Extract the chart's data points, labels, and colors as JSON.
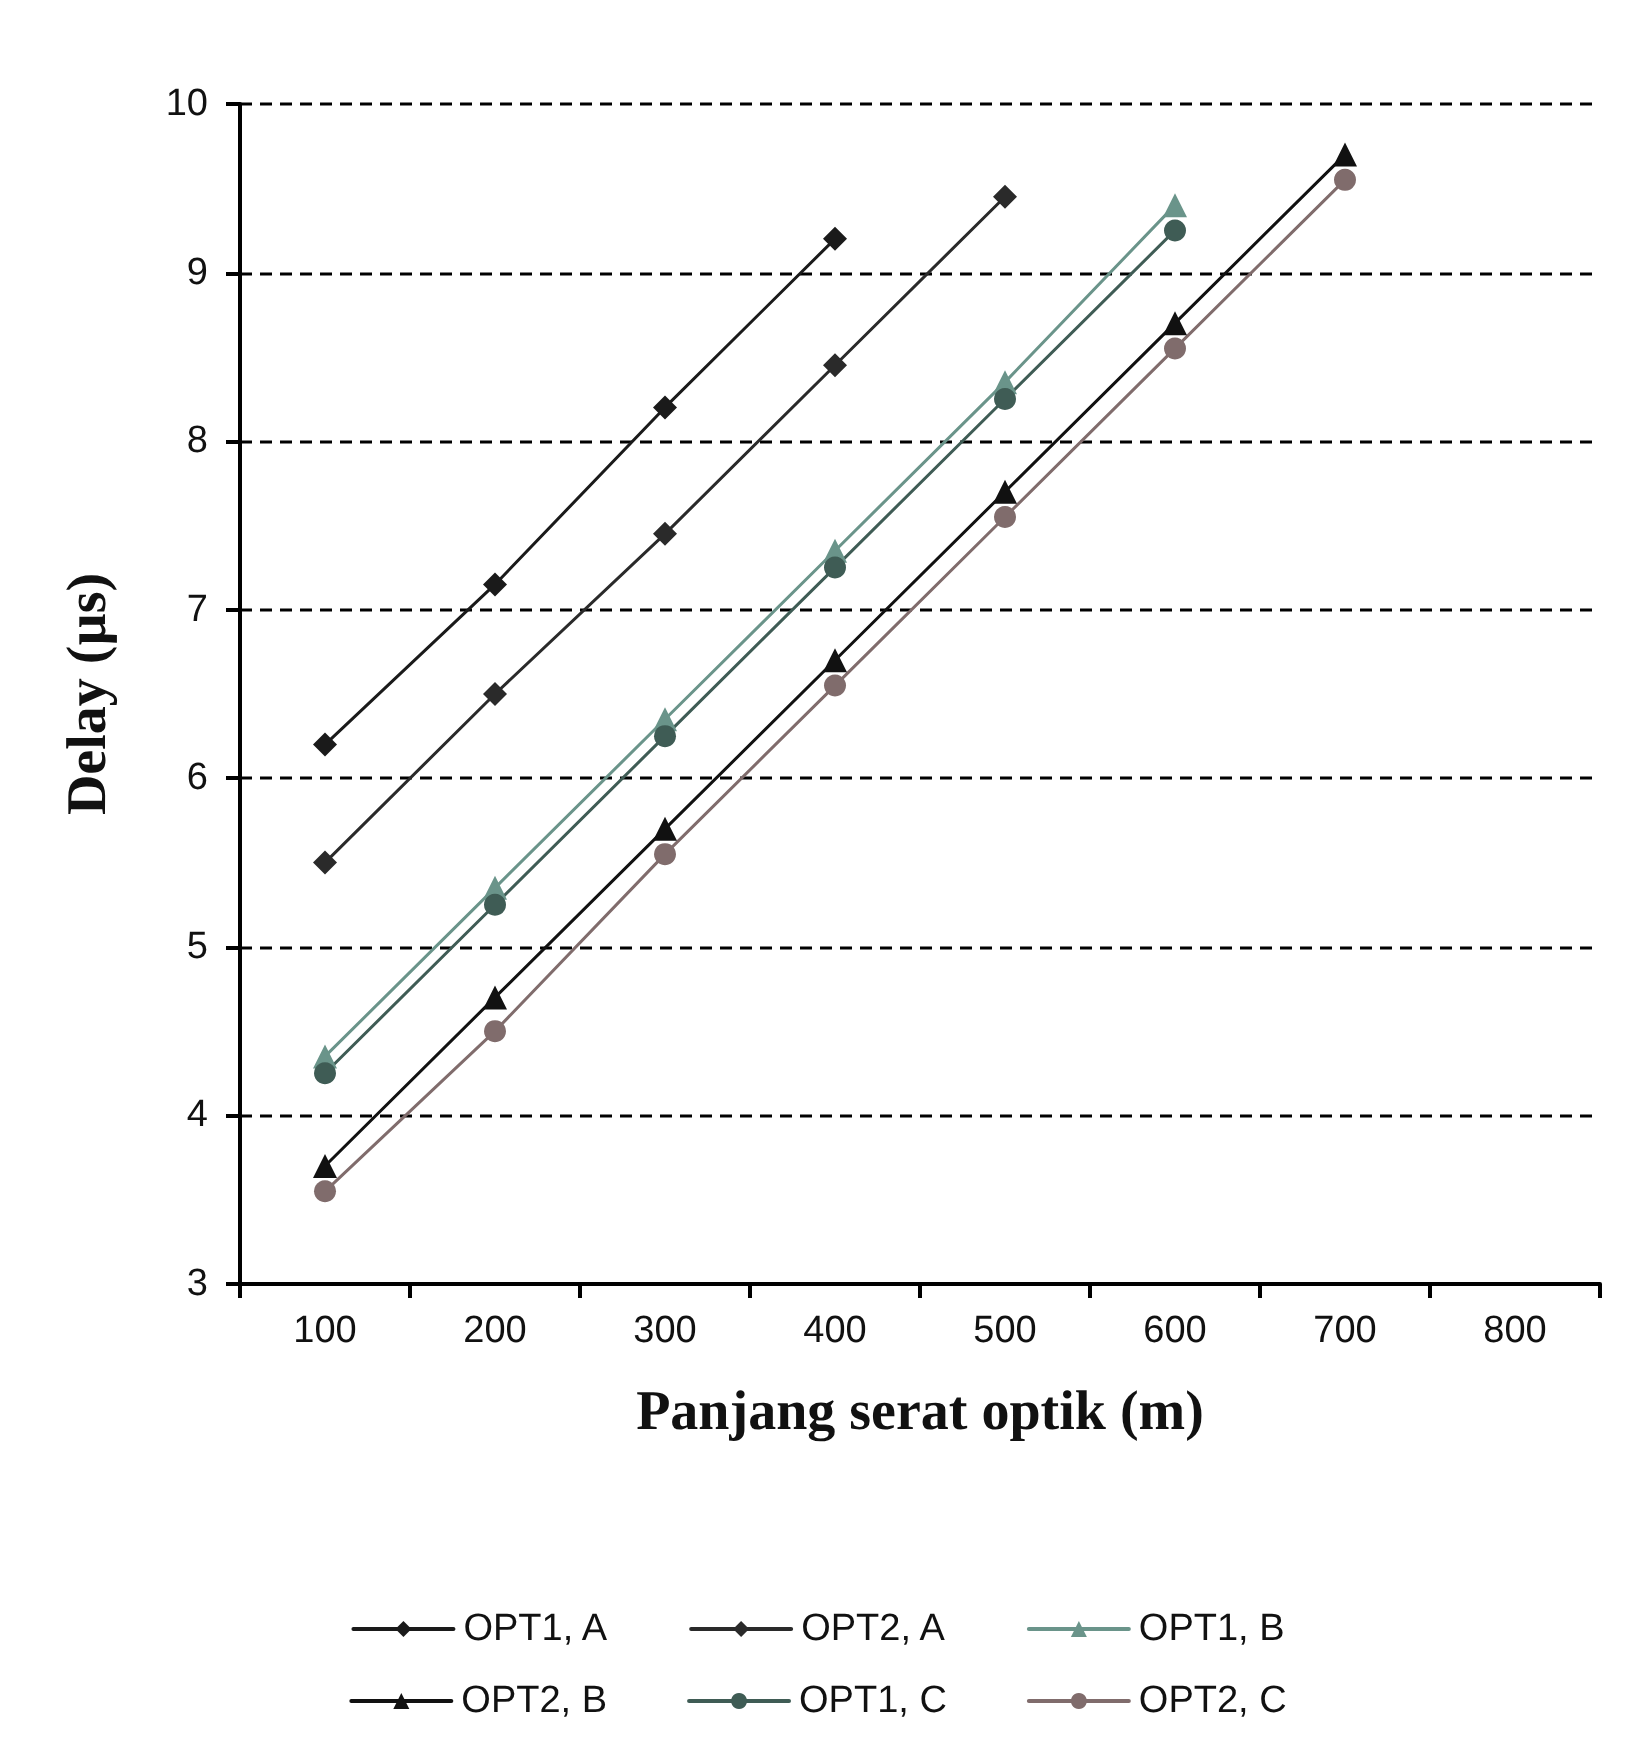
{
  "chart_data": {
    "type": "line",
    "xlabel": "Panjang serat optik (m)",
    "ylabel": "Delay (µs)",
    "categories": [
      "100",
      "200",
      "300",
      "400",
      "500",
      "600",
      "700",
      "800"
    ],
    "series": [
      {
        "name": "OPT1, A",
        "color": "#1a1a1a",
        "marker": "diamond",
        "values": [
          6.2,
          7.15,
          8.2,
          9.2,
          null,
          null,
          null,
          null
        ]
      },
      {
        "name": "OPT2, A",
        "color": "#2a2a2a",
        "marker": "diamond",
        "values": [
          5.5,
          6.5,
          7.45,
          8.45,
          9.45,
          null,
          null,
          null
        ]
      },
      {
        "name": "OPT1, B",
        "color": "#6a948a",
        "marker": "triangle",
        "values": [
          4.35,
          5.35,
          6.35,
          7.35,
          8.35,
          9.4,
          null,
          null
        ]
      },
      {
        "name": "OPT2, B",
        "color": "#111111",
        "marker": "triangle",
        "values": [
          3.7,
          4.7,
          5.7,
          6.7,
          7.7,
          8.7,
          9.7,
          null
        ]
      },
      {
        "name": "OPT1, C",
        "color": "#3f5c55",
        "marker": "circle",
        "values": [
          4.25,
          5.25,
          6.25,
          7.25,
          8.25,
          9.25,
          null,
          null
        ]
      },
      {
        "name": "OPT2, C",
        "color": "#806c6c",
        "marker": "circle",
        "values": [
          3.55,
          4.5,
          5.55,
          6.55,
          7.55,
          8.55,
          9.55,
          null
        ]
      }
    ],
    "ylim": [
      3,
      10
    ],
    "yticks": [
      3,
      4,
      5,
      6,
      7,
      8,
      9,
      10
    ],
    "grid": "y",
    "legend": "bottom",
    "line_style": "solid"
  }
}
